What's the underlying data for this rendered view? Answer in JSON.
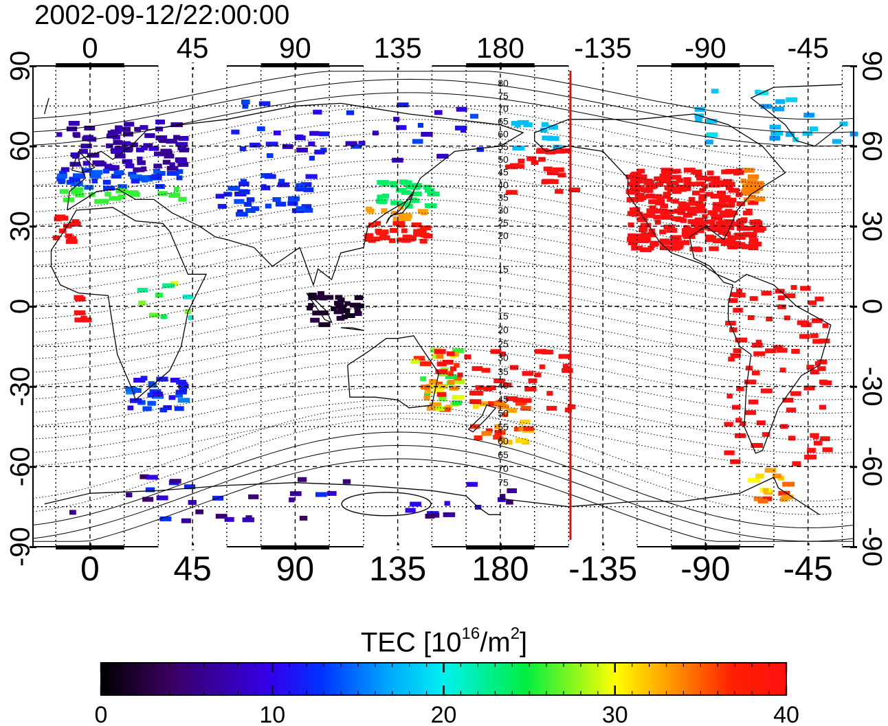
{
  "title": "2002-09-12/22:00:00",
  "top_tick_labels": [
    "0",
    "45",
    "90",
    "135",
    "180",
    "-135",
    "-90",
    "-45"
  ],
  "bottom_tick_labels": [
    "0",
    "45",
    "90",
    "135",
    "180",
    "-135",
    "-90",
    "-45"
  ],
  "left_tick_labels": [
    "90",
    "60",
    "30",
    "0",
    "-30",
    "-60",
    "-90"
  ],
  "right_tick_labels": [
    "90",
    "60",
    "30",
    "0",
    "-30",
    "-60",
    "-90"
  ],
  "contour_labels_north": [
    "80",
    "75",
    "70",
    "65",
    "60",
    "55",
    "50",
    "45",
    "40",
    "35",
    "30",
    "25",
    "20",
    "15"
  ],
  "contour_labels_south": [
    "15",
    "20",
    "25",
    "30",
    "35",
    "40",
    "45",
    "50",
    "55",
    "60",
    "65",
    "70",
    "75"
  ],
  "colorbar": {
    "label_main": "TEC  [10",
    "label_exp1": "16",
    "label_mid": "/m",
    "label_exp2": "2",
    "label_end": "]",
    "tick_labels": [
      "0",
      "10",
      "20",
      "30",
      "40"
    ],
    "min": 0,
    "max": 40
  },
  "colors": {
    "terminator": "#e01010",
    "high_tec": "#ff1a10"
  },
  "chart_data": {
    "type": "heatmap",
    "title": "2002-09-12/22:00:00",
    "xlim": [
      -25,
      335
    ],
    "ylim": [
      -90,
      90
    ],
    "terminator_longitude": -150,
    "value_range": [
      0,
      40
    ],
    "regions": [
      {
        "lon": [
          -15,
          40
        ],
        "lat": [
          40,
          65
        ],
        "tec_approx": 8
      },
      {
        "lon": [
          55,
          95
        ],
        "lat": [
          35,
          50
        ],
        "tec_approx": 11
      },
      {
        "lon": [
          120,
          145
        ],
        "lat": [
          30,
          45
        ],
        "tec_approx": 22
      },
      {
        "lon": [
          -125,
          -70
        ],
        "lat": [
          25,
          50
        ],
        "tec_approx": 40
      },
      {
        "lon": [
          -80,
          -40
        ],
        "lat": [
          -55,
          5
        ],
        "tec_approx": 40
      },
      {
        "lon": [
          95,
          115
        ],
        "lat": [
          -5,
          5
        ],
        "tec_approx": 2
      },
      {
        "lon": [
          165,
          185
        ],
        "lat": [
          -50,
          -35
        ],
        "tec_approx": 33
      }
    ]
  }
}
